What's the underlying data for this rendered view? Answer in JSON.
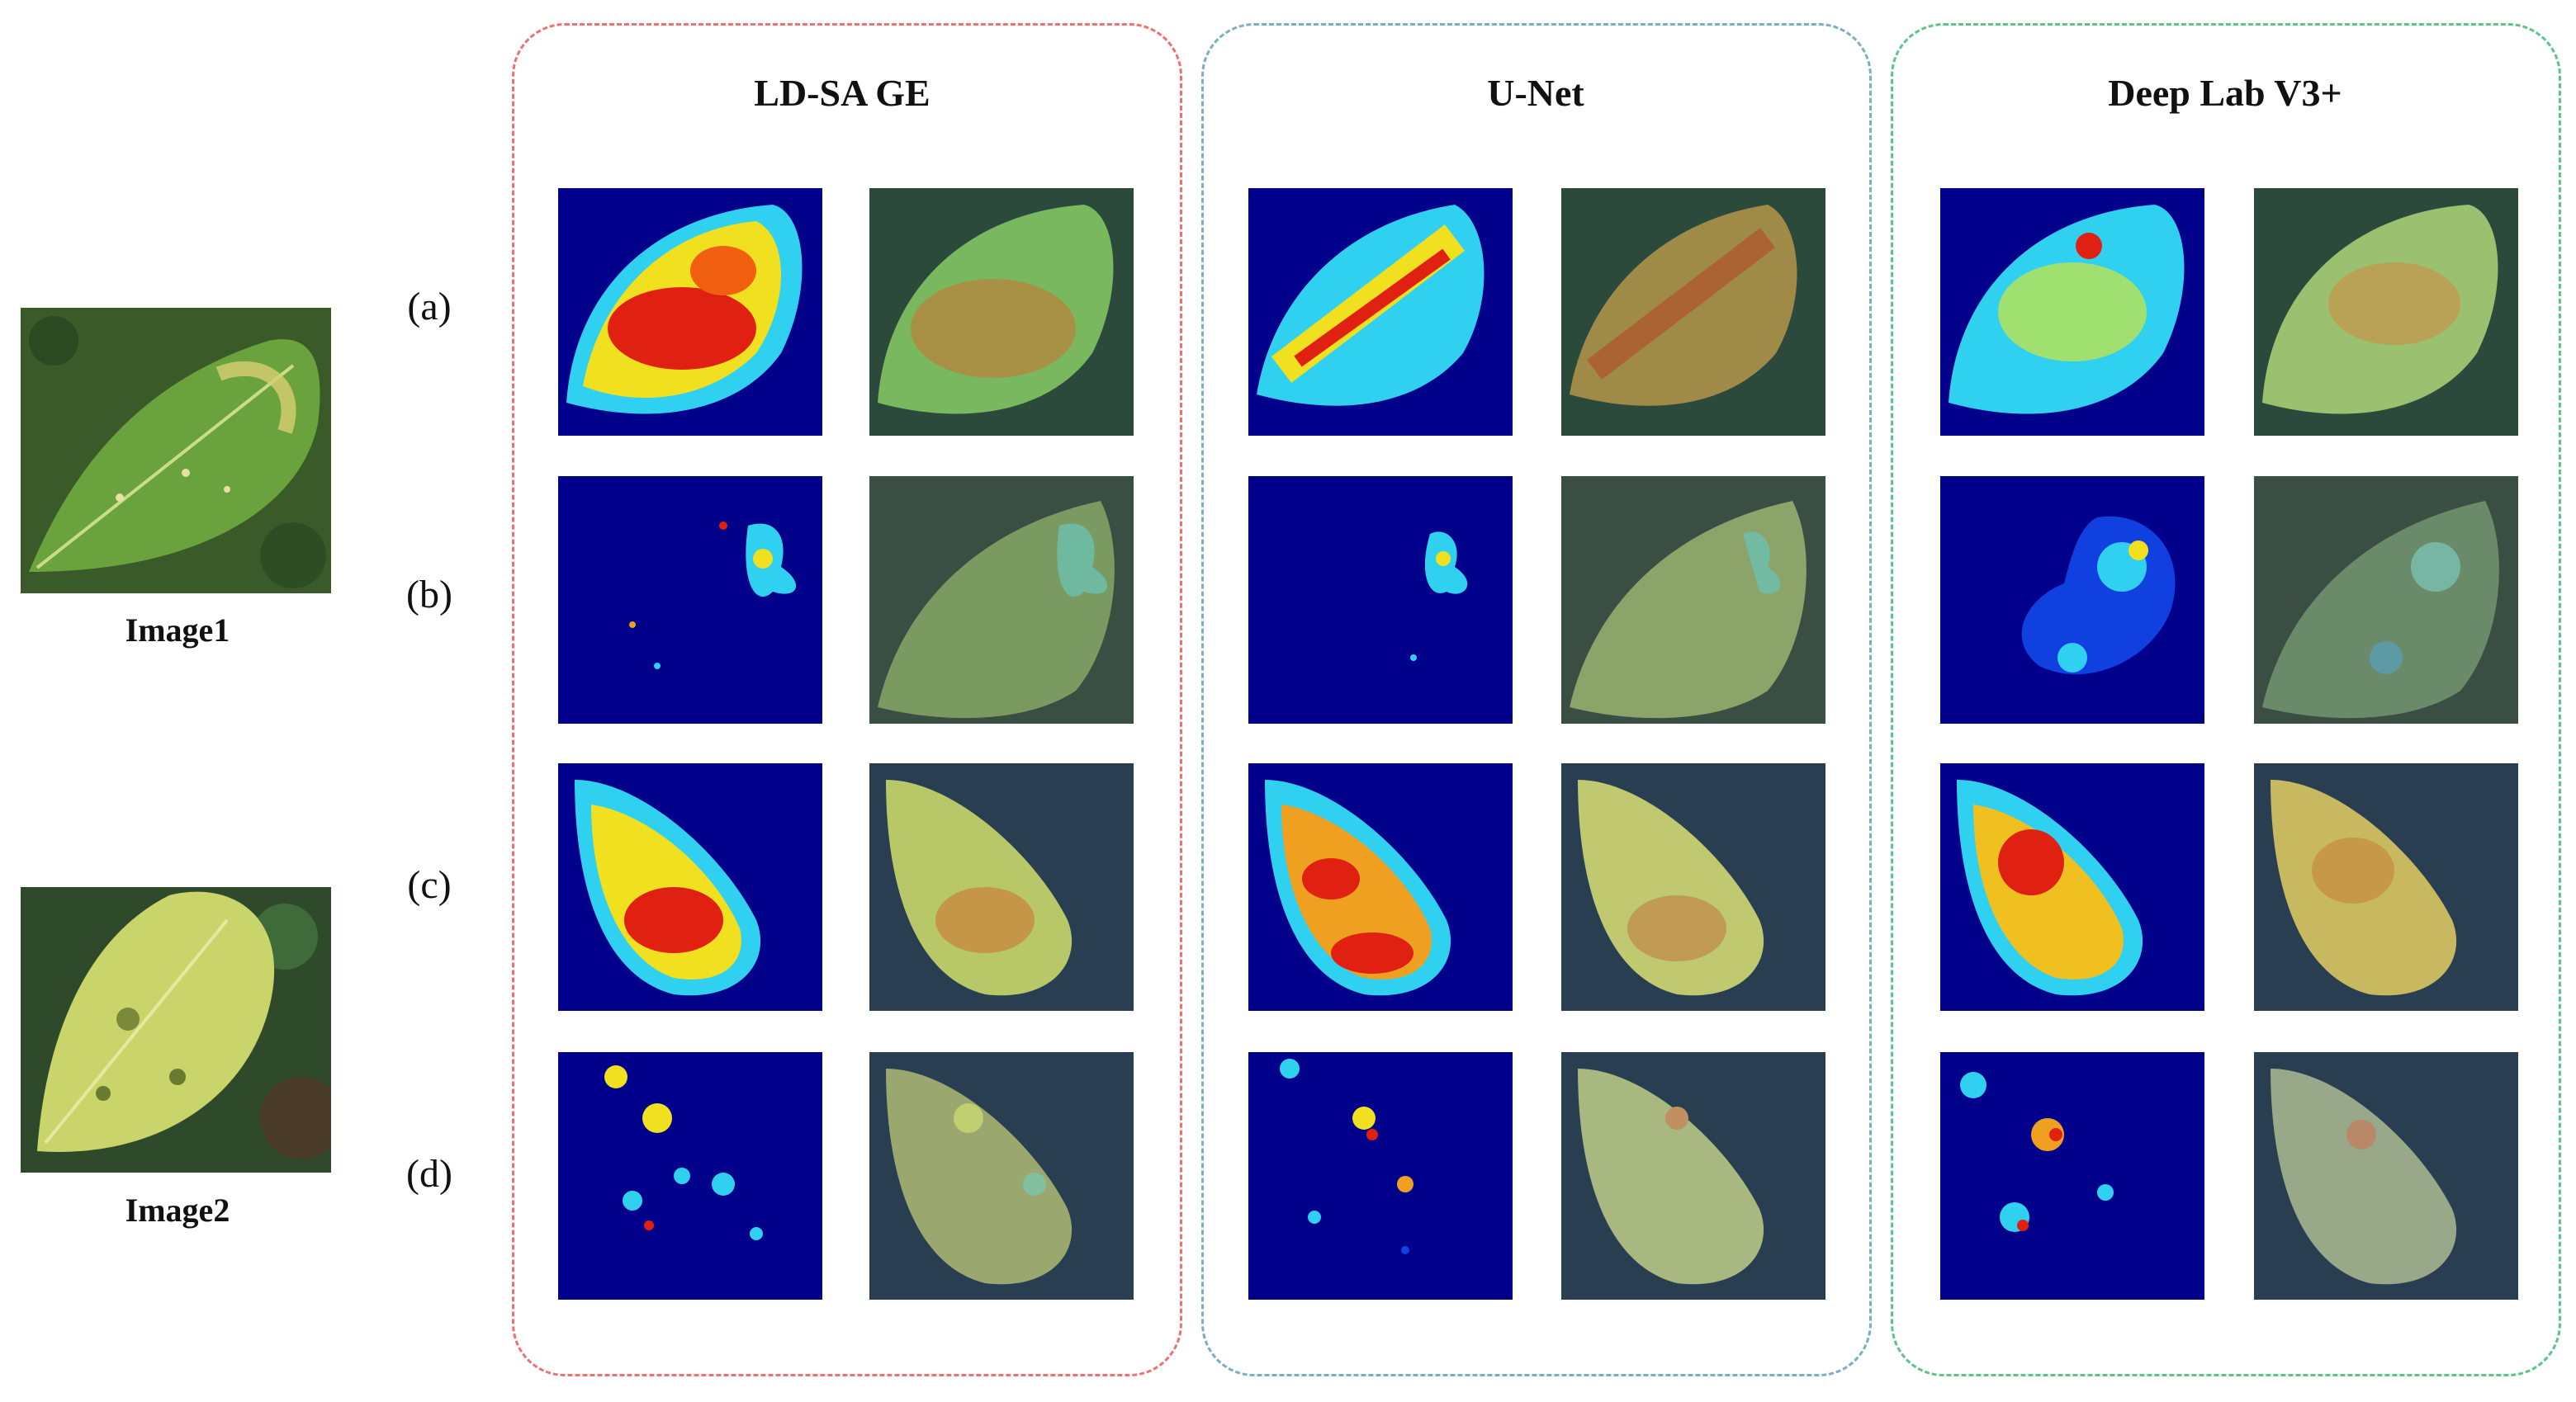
{
  "source_images": [
    {
      "caption": "Image1"
    },
    {
      "caption": "Image2"
    }
  ],
  "row_labels": [
    "(a)",
    "(b)",
    "(c)",
    "(d)"
  ],
  "panels": [
    {
      "title": "LD-SA GE",
      "border_color": "#f07070"
    },
    {
      "title": "U-Net",
      "border_color": "#7aaec0"
    },
    {
      "title": "Deep Lab V3+",
      "border_color": "#5cc488"
    }
  ],
  "colors": {
    "heatmap_background": "#00008b",
    "heatmap_hot": "#e02010",
    "heatmap_warm": "#f0e020",
    "heatmap_cool": "#30d0f0",
    "leaf_green": "#5e9a3a",
    "leaf_yellow": "#c9d46a"
  }
}
